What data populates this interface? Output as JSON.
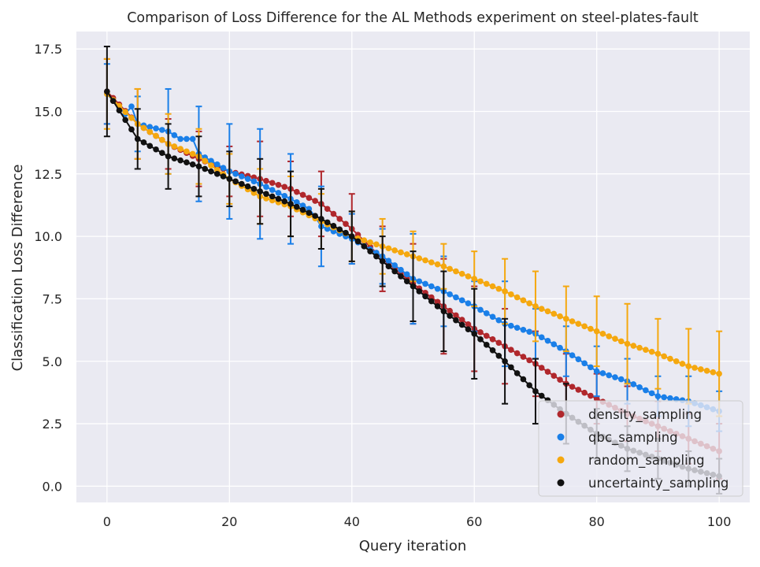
{
  "chart_data": {
    "type": "scatter",
    "title": "Comparison of Loss Difference for the AL Methods experiment on steel-plates-fault",
    "xlabel": "Query iteration",
    "ylabel": "Classification Loss Difference",
    "xlim": [
      -5,
      105
    ],
    "ylim": [
      -0.65,
      18.2
    ],
    "xticks": [
      0,
      20,
      40,
      60,
      80,
      100
    ],
    "yticks": [
      0.0,
      2.5,
      5.0,
      7.5,
      10.0,
      12.5,
      15.0,
      17.5
    ],
    "ytick_labels": [
      "0.0",
      "2.5",
      "5.0",
      "7.5",
      "10.0",
      "12.5",
      "15.0",
      "17.5"
    ],
    "grid": true,
    "legend_position": "lower right",
    "errorbar_every": 5,
    "series": [
      {
        "name": "density_sampling",
        "color": "#b0272c",
        "anchors_x": [
          0,
          5,
          10,
          15,
          20,
          25,
          30,
          35,
          40,
          45,
          50,
          55,
          60,
          65,
          70,
          75,
          80,
          85,
          90,
          95,
          100
        ],
        "anchors_y": [
          15.8,
          14.5,
          13.7,
          13.1,
          12.6,
          12.3,
          11.9,
          11.3,
          10.3,
          9.1,
          8.1,
          7.2,
          6.3,
          5.6,
          4.9,
          4.1,
          3.5,
          2.9,
          2.4,
          1.9,
          1.4
        ],
        "err_y": [
          1.3,
          1.4,
          1.0,
          1.1,
          1.0,
          1.5,
          1.1,
          1.3,
          1.4,
          1.3,
          1.6,
          1.9,
          1.7,
          1.5,
          1.3,
          1.2,
          1.0,
          1.1,
          1.0,
          1.0,
          1.1
        ]
      },
      {
        "name": "qbc_sampling",
        "color": "#1a7fe8",
        "anchors_x": [
          0,
          3,
          4,
          5,
          10,
          12,
          14,
          15,
          20,
          25,
          30,
          33,
          34,
          35,
          40,
          45,
          50,
          55,
          60,
          65,
          70,
          75,
          80,
          85,
          90,
          95,
          100
        ],
        "anchors_y": [
          15.7,
          14.9,
          15.2,
          14.5,
          14.2,
          13.9,
          13.9,
          13.3,
          12.6,
          12.1,
          11.5,
          11.1,
          10.8,
          10.4,
          9.9,
          9.2,
          8.3,
          7.8,
          7.2,
          6.5,
          6.1,
          5.4,
          4.6,
          4.2,
          3.6,
          3.4,
          3.0
        ],
        "err_y": [
          1.2,
          1.0,
          1.0,
          1.1,
          1.7,
          1.7,
          1.7,
          1.9,
          1.9,
          2.2,
          1.8,
          1.5,
          1.5,
          1.6,
          1.0,
          1.1,
          1.8,
          1.4,
          1.0,
          1.7,
          1.0,
          1.0,
          1.0,
          0.9,
          0.8,
          1.0,
          0.8
        ]
      },
      {
        "name": "random_sampling",
        "color": "#f5a80f",
        "anchors_x": [
          0,
          5,
          10,
          15,
          20,
          25,
          30,
          35,
          40,
          45,
          50,
          55,
          60,
          65,
          70,
          75,
          80,
          85,
          90,
          95,
          100
        ],
        "anchors_y": [
          15.7,
          14.5,
          13.7,
          13.2,
          12.3,
          11.6,
          11.2,
          10.6,
          10.0,
          9.6,
          9.2,
          8.8,
          8.3,
          7.8,
          7.2,
          6.7,
          6.2,
          5.7,
          5.3,
          4.8,
          4.5
        ],
        "err_y": [
          1.4,
          1.4,
          1.2,
          1.1,
          1.0,
          1.1,
          1.2,
          1.1,
          1.0,
          1.1,
          1.0,
          0.9,
          1.1,
          1.3,
          1.4,
          1.3,
          1.4,
          1.6,
          1.4,
          1.5,
          1.7
        ]
      },
      {
        "name": "uncertainty_sampling",
        "color": "#111111",
        "anchors_x": [
          0,
          5,
          10,
          15,
          20,
          25,
          30,
          35,
          40,
          45,
          50,
          55,
          60,
          65,
          70,
          75,
          80,
          85,
          90,
          95,
          100
        ],
        "anchors_y": [
          15.8,
          13.9,
          13.2,
          12.8,
          12.3,
          11.8,
          11.3,
          10.7,
          10.0,
          9.0,
          8.0,
          7.0,
          6.1,
          5.0,
          3.8,
          2.9,
          2.1,
          1.5,
          1.1,
          0.7,
          0.4
        ],
        "err_y": [
          1.8,
          1.2,
          1.3,
          1.2,
          1.1,
          1.3,
          1.3,
          1.2,
          1.0,
          1.0,
          1.4,
          1.6,
          1.8,
          1.7,
          1.3,
          1.2,
          1.0,
          0.9,
          0.8,
          0.7,
          0.7
        ]
      }
    ]
  }
}
